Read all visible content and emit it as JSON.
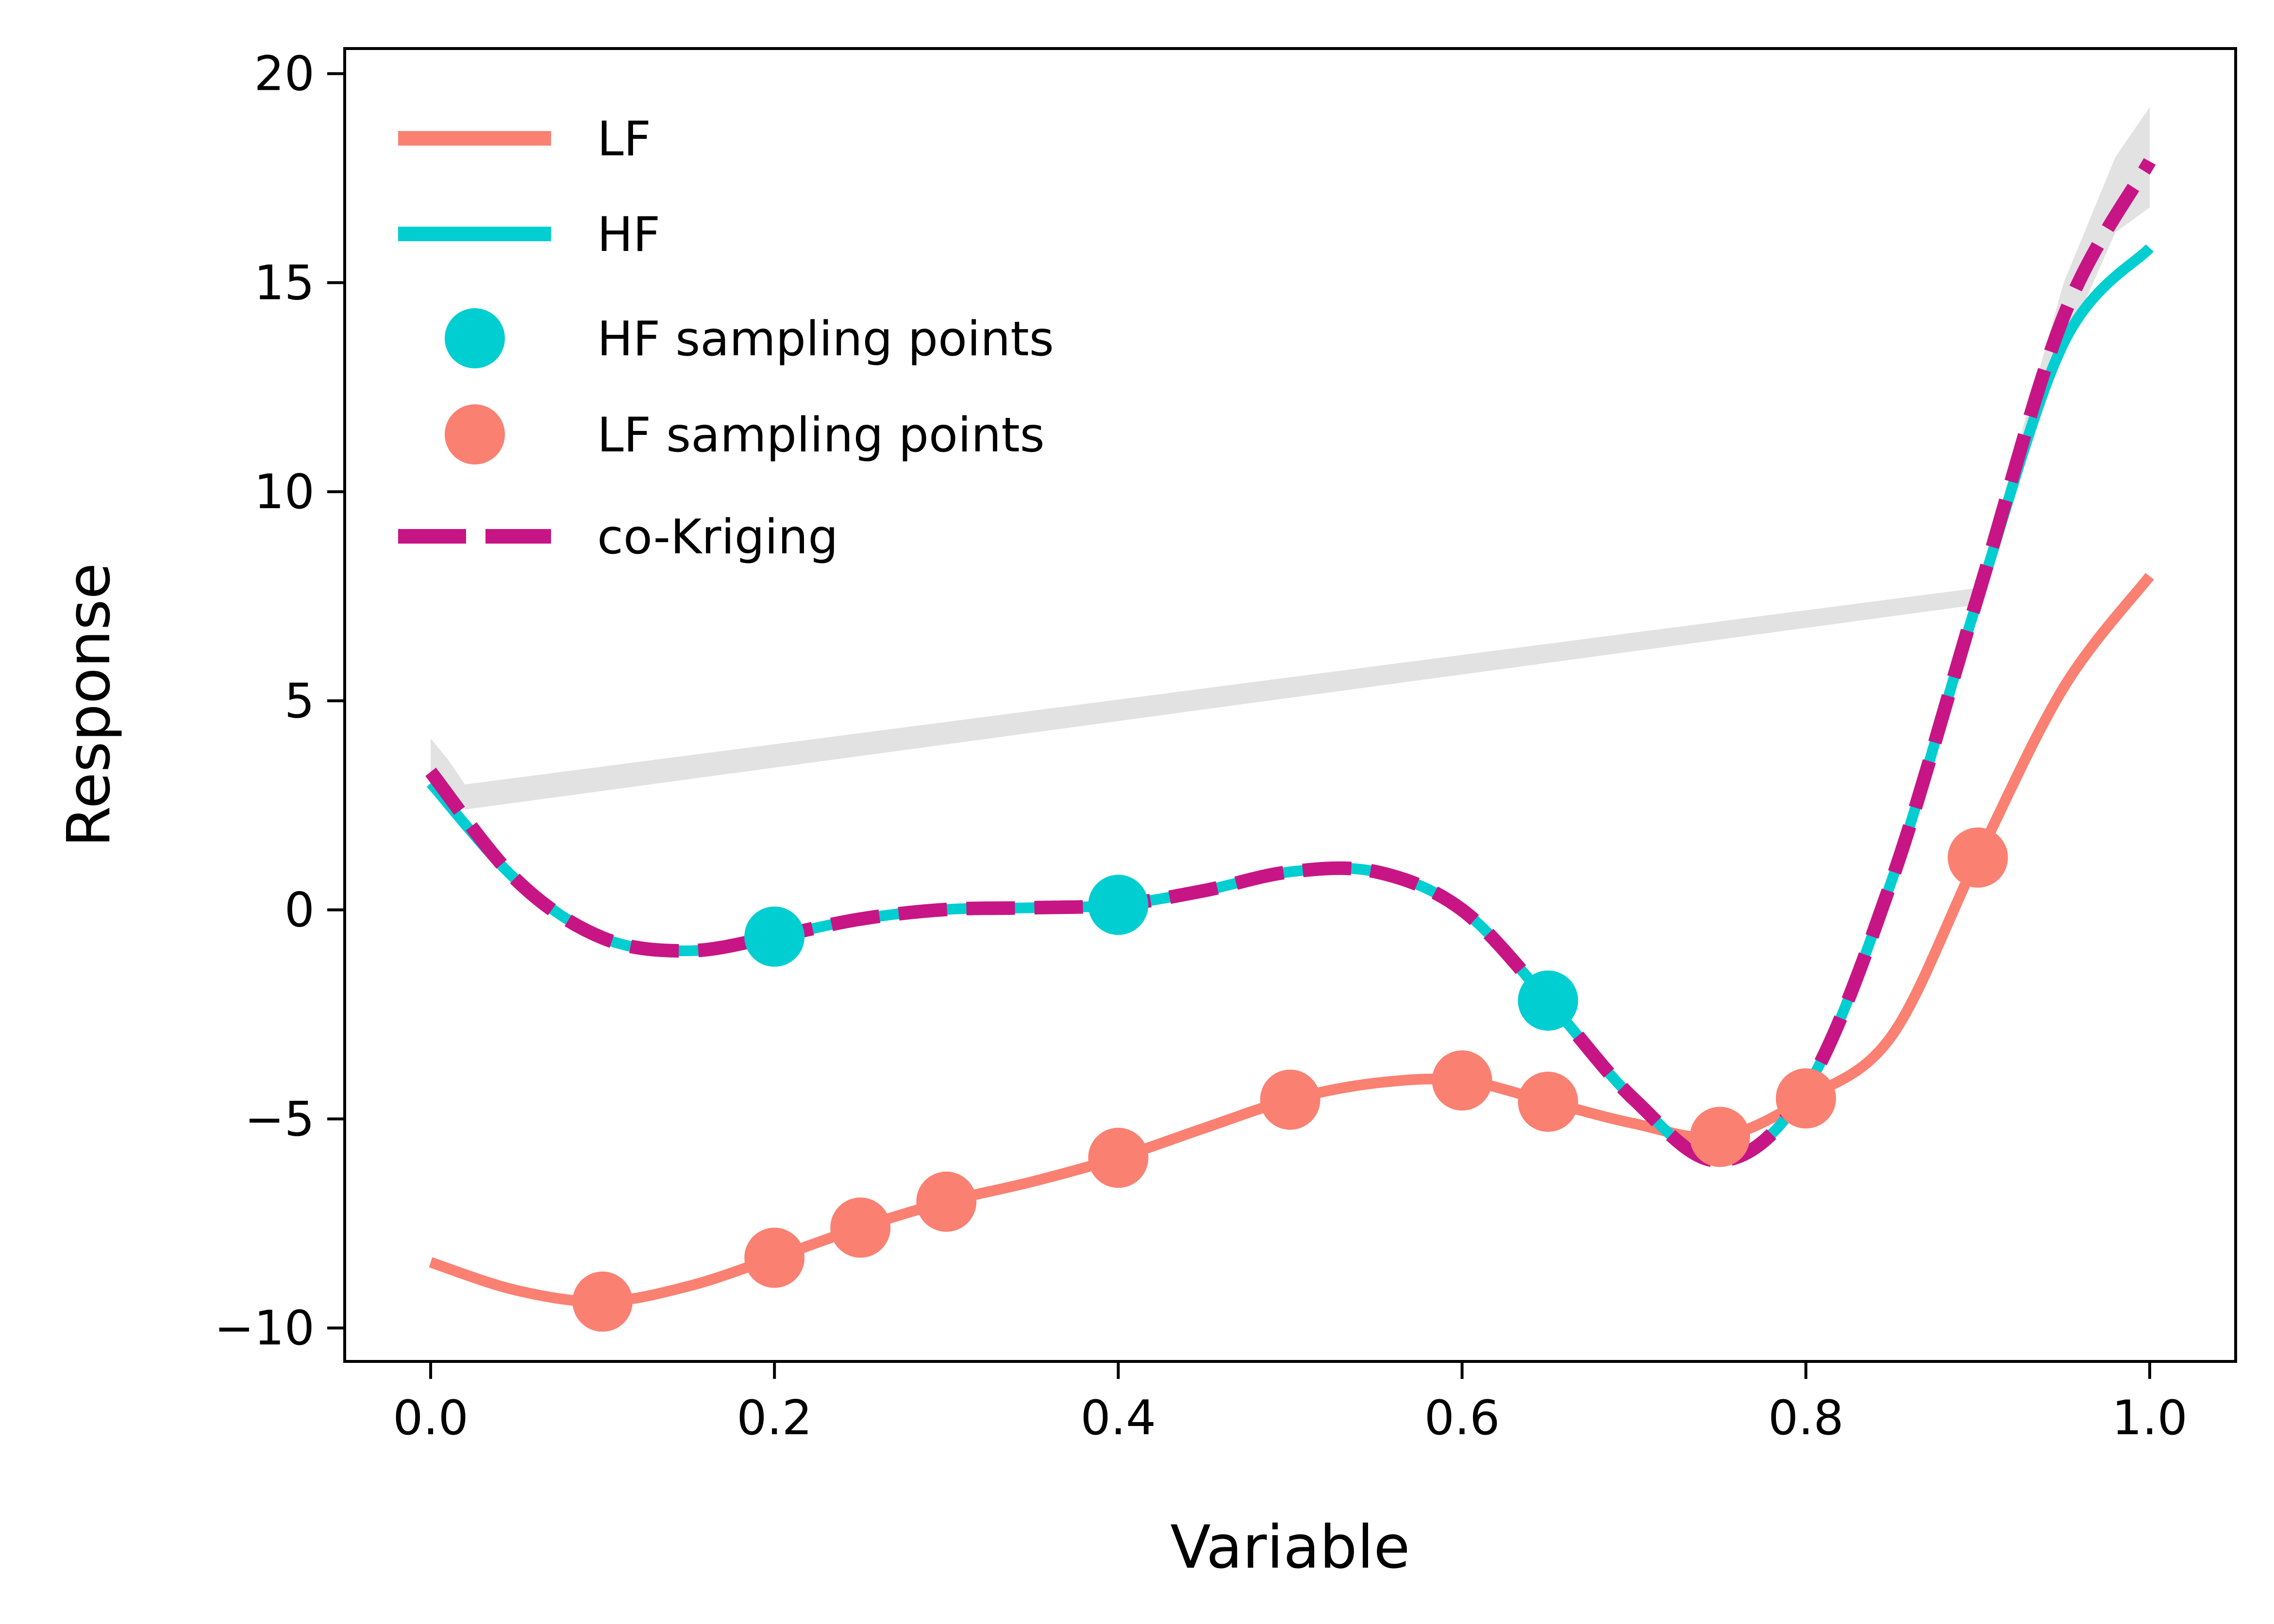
{
  "chart_data": {
    "type": "line",
    "xlabel": "Variable",
    "ylabel": "Response",
    "xlim": [
      -0.05,
      1.05
    ],
    "ylim": [
      -10.8,
      20.6
    ],
    "xticks": [
      0.0,
      0.2,
      0.4,
      0.6,
      0.8,
      1.0
    ],
    "xtick_labels": [
      "0.0",
      "0.2",
      "0.4",
      "0.6",
      "0.8",
      "1.0"
    ],
    "yticks": [
      -10,
      -5,
      0,
      5,
      10,
      15,
      20
    ],
    "ytick_labels": [
      "−10",
      "−5",
      "0",
      "5",
      "10",
      "15",
      "20"
    ],
    "grid": false,
    "legend": {
      "placement": "upper-left",
      "entries": [
        {
          "label": "LF",
          "kind": "line",
          "color": "#fa8072"
        },
        {
          "label": "HF",
          "kind": "line",
          "color": "#00ced1"
        },
        {
          "label": "HF sampling points",
          "kind": "marker",
          "color": "#00ced1"
        },
        {
          "label": "LF sampling points",
          "kind": "marker",
          "color": "#fa8072"
        },
        {
          "label": "co-Kriging",
          "kind": "dashed",
          "color": "#c71585"
        }
      ]
    },
    "series": [
      {
        "name": "LF",
        "kind": "line",
        "color": "#fa8072",
        "x": [
          0.0,
          0.05,
          0.1,
          0.15,
          0.2,
          0.25,
          0.3,
          0.35,
          0.4,
          0.45,
          0.5,
          0.55,
          0.6,
          0.65,
          0.7,
          0.75,
          0.8,
          0.85,
          0.9,
          0.95,
          1.0
        ],
        "y": [
          -8.43,
          -9.1,
          -9.37,
          -9.0,
          -8.32,
          -7.6,
          -6.98,
          -6.5,
          -5.93,
          -5.22,
          -4.54,
          -4.14,
          -4.08,
          -4.59,
          -5.11,
          -5.43,
          -4.51,
          -3.01,
          1.25,
          5.32,
          7.98
        ]
      },
      {
        "name": "HF",
        "kind": "line",
        "color": "#00ced1",
        "x": [
          0.0,
          0.05,
          0.1,
          0.15,
          0.2,
          0.25,
          0.3,
          0.35,
          0.4,
          0.45,
          0.5,
          0.55,
          0.6,
          0.65,
          0.7,
          0.75,
          0.8,
          0.85,
          0.9,
          0.95,
          1.0
        ],
        "y": [
          3.03,
          0.71,
          -0.67,
          -0.98,
          -0.64,
          -0.22,
          0.01,
          0.05,
          0.12,
          0.46,
          0.91,
          0.91,
          0.0,
          -2.17,
          -4.53,
          -6.0,
          -4.29,
          0.71,
          7.42,
          13.56,
          15.83
        ]
      },
      {
        "name": "co-Kriging",
        "kind": "dashed",
        "color": "#c71585",
        "x": [
          0.0,
          0.05,
          0.1,
          0.15,
          0.2,
          0.25,
          0.3,
          0.35,
          0.4,
          0.45,
          0.5,
          0.55,
          0.6,
          0.65,
          0.7,
          0.75,
          0.8,
          0.85,
          0.9,
          0.95,
          1.0
        ],
        "y": [
          3.3,
          0.71,
          -0.67,
          -0.98,
          -0.64,
          -0.22,
          0.01,
          0.05,
          0.12,
          0.46,
          0.91,
          0.91,
          0.0,
          -2.17,
          -4.53,
          -6.0,
          -4.29,
          0.71,
          7.5,
          14.2,
          17.9
        ]
      },
      {
        "name": "HF sampling points",
        "kind": "scatter",
        "color": "#00ced1",
        "x": [
          0.2,
          0.4,
          0.65
        ],
        "y": [
          -0.64,
          0.12,
          -2.17
        ]
      },
      {
        "name": "LF sampling points",
        "kind": "scatter",
        "color": "#fa8072",
        "x": [
          0.1,
          0.2,
          0.25,
          0.3,
          0.4,
          0.5,
          0.6,
          0.65,
          0.75,
          0.8,
          0.9
        ],
        "y": [
          -9.37,
          -8.32,
          -7.6,
          -6.98,
          -5.93,
          -4.54,
          -4.08,
          -4.59,
          -5.43,
          -4.51,
          1.25
        ]
      }
    ],
    "confidence_band": {
      "color": "#bebebe",
      "x": [
        0.0,
        0.01,
        0.02,
        0.9,
        0.95,
        0.98,
        1.0
      ],
      "upper": [
        4.1,
        3.6,
        3.0,
        7.7,
        15.0,
        18.0,
        19.2
      ],
      "lower": [
        2.9,
        2.8,
        2.4,
        7.3,
        13.4,
        16.2,
        16.8
      ]
    }
  }
}
